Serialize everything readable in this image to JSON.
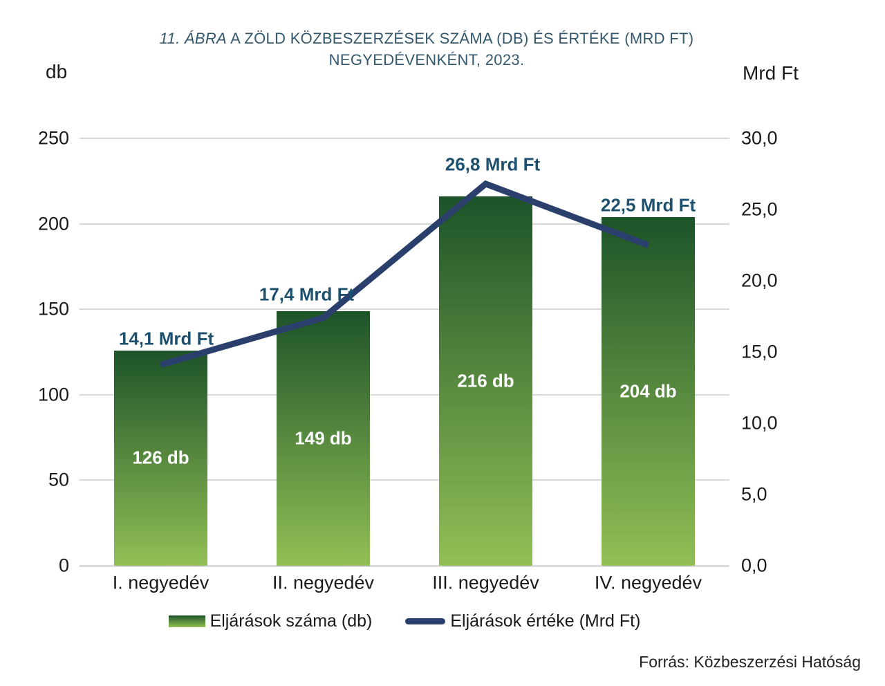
{
  "title": {
    "prefix": "11. ÁBRA",
    "rest": "A ZÖLD KÖZBESZERZÉSEK SZÁMA (DB) ÉS ÉRTÉKE (MRD FT)",
    "line2": "NEGYEDÉVENKÉNT, 2023."
  },
  "footer": {
    "source": "Forrás: Közbeszerzési Hatóság"
  },
  "chart_data": {
    "type": "bar+line combo",
    "categories": [
      "I. negyedév",
      "II. negyedév",
      "III. negyedév",
      "IV. negyedév"
    ],
    "series": [
      {
        "name": "Eljárások száma (db)",
        "type": "bar",
        "axis": "left",
        "values": [
          126,
          149,
          216,
          204
        ],
        "labels": [
          "126 db",
          "149 db",
          "216 db",
          "204 db"
        ]
      },
      {
        "name": "Eljárások értéke (Mrd Ft)",
        "type": "line",
        "axis": "right",
        "values": [
          14.1,
          17.4,
          26.8,
          22.5
        ],
        "labels": [
          "14,1 Mrd Ft",
          "17,4 Mrd Ft",
          "26,8 Mrd Ft",
          "22,5 Mrd Ft"
        ]
      }
    ],
    "left_axis": {
      "unit": "db",
      "min": 0,
      "max": 250,
      "ticks": [
        {
          "v": 0,
          "t": "0"
        },
        {
          "v": 50,
          "t": "50"
        },
        {
          "v": 100,
          "t": "100"
        },
        {
          "v": 150,
          "t": "150"
        },
        {
          "v": 200,
          "t": "200"
        },
        {
          "v": 250,
          "t": "250"
        }
      ]
    },
    "right_axis": {
      "unit": "Mrd Ft",
      "min": 0,
      "max": 30,
      "ticks": [
        {
          "v": 0,
          "t": "0,0"
        },
        {
          "v": 5,
          "t": "5,0"
        },
        {
          "v": 10,
          "t": "10,0"
        },
        {
          "v": 15,
          "t": "15,0"
        },
        {
          "v": 20,
          "t": "20,0"
        },
        {
          "v": 25,
          "t": "25,0"
        },
        {
          "v": 30,
          "t": "30,0"
        }
      ]
    },
    "grid": "horizontal",
    "legend_position": "bottom",
    "colors": {
      "bar_top": "#1d5329",
      "bar_bottom": "#92bf55",
      "line": "#2b3f6c",
      "title": "#33576c",
      "value_label": "#1d506e",
      "bar_value_text": "#ffffff",
      "grid": "#d9d9d9"
    }
  }
}
